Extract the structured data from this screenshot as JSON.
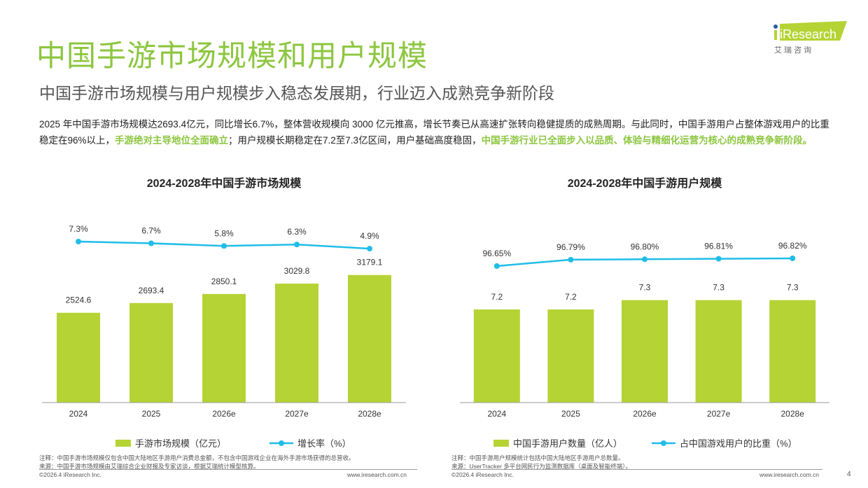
{
  "header": {
    "title": "中国手游市场规模和用户规模",
    "subtitle": "中国手游市场规模与用户规模步入稳态发展期，行业迈入成熟竞争新阶段",
    "logo_text": "iResearch",
    "logo_cn": "艾 瑞 咨 询"
  },
  "summary": {
    "p1": "2025 年中国手游市场规模达2693.4亿元，同比增长6.7%，整体营收规模向 3000 亿元推高，增长节奏已从高速扩张转向稳健提质的成熟周期。与此同时，中国手游用户占整体游戏用户的比重稳定在96%以上，",
    "h1": "手游绝对主导地位全面确立",
    "p2": "；用户规模长期稳定在7.2至7.3亿区间，用户基础高度稳固，",
    "h2": "中国手游行业已全面步入以品质、体验与精细化运营为核心的成熟竞争新阶段。"
  },
  "colors": {
    "bar": "#b5d334",
    "line": "#1fbde8",
    "accent": "#8cc63f"
  },
  "chart_data": [
    {
      "type": "bar+line",
      "title": "2024-2028年中国手游市场规模",
      "categories": [
        "2024",
        "2025",
        "2026e",
        "2027e",
        "2028e"
      ],
      "series": [
        {
          "name": "手游市场规模（亿元）",
          "type": "bar",
          "values": [
            2524.6,
            2693.4,
            2850.1,
            3029.8,
            3179.1
          ],
          "labels": [
            "2524.6",
            "2693.4",
            "2850.1",
            "3029.8",
            "3179.1"
          ]
        },
        {
          "name": "增长率（%）",
          "type": "line",
          "values": [
            7.3,
            6.7,
            5.8,
            6.3,
            4.9
          ],
          "labels": [
            "7.3%",
            "6.7%",
            "5.8%",
            "6.3%",
            "4.9%"
          ]
        }
      ],
      "legend": "bottom",
      "grid": false
    },
    {
      "type": "bar+line",
      "title": "2024-2028年中国手游用户规模",
      "categories": [
        "2024",
        "2025",
        "2026e",
        "2027e",
        "2028e"
      ],
      "series": [
        {
          "name": "中国手游用户数量（亿人）",
          "type": "bar",
          "values": [
            7.2,
            7.2,
            7.3,
            7.3,
            7.3
          ],
          "labels": [
            "7.2",
            "7.2",
            "7.3",
            "7.3",
            "7.3"
          ]
        },
        {
          "name": "占中国游戏用户的比重（%）",
          "type": "line",
          "values": [
            96.65,
            96.79,
            96.8,
            96.81,
            96.82
          ],
          "labels": [
            "96.65%",
            "96.79%",
            "96.80%",
            "96.81%",
            "96.82%"
          ]
        }
      ],
      "legend": "bottom",
      "grid": false
    }
  ],
  "notes": {
    "left_note": "注释：中国手游市场规模仅包含中国大陆地区手游用户消费总金额，不包含中国游戏企业在海外手游市场获得的总营收。",
    "left_source": "来源：中国手游市场规模由艾瑞综合企业财报及专家访谈，根据艾瑞统计模型核算。",
    "right_note": "注释：中国手游用户规模统计包括中国大陆地区手游用户总数量。",
    "right_source": "来源：UserTracker 多平台网民行为监测数据库（桌面及智能终端）。"
  },
  "footer": {
    "copyright": "©2026.4 iResearch Inc.",
    "url": "www.iresearch.com.cn",
    "page": "4"
  }
}
